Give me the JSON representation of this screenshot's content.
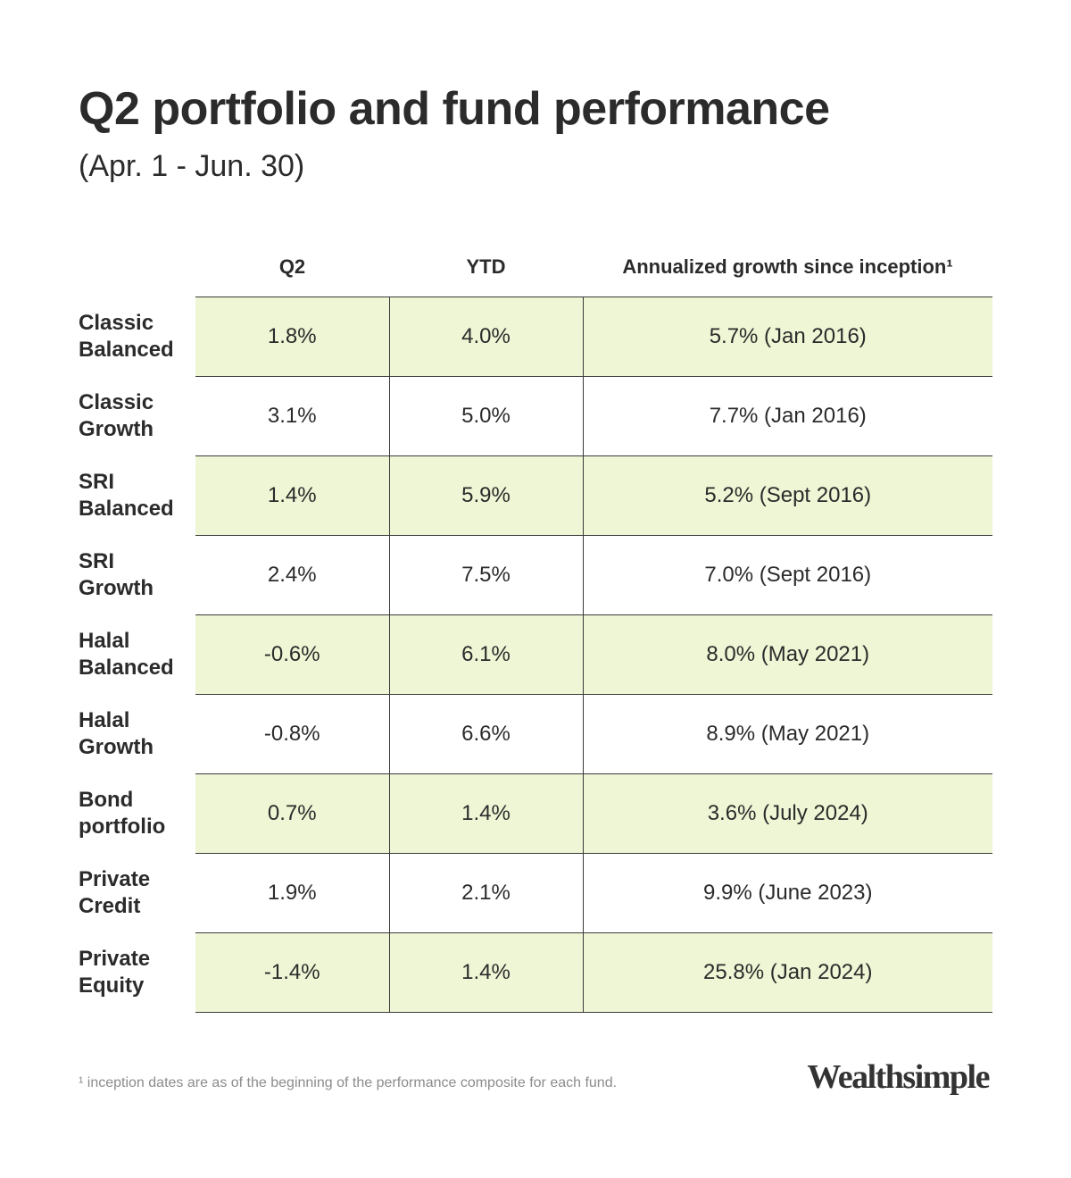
{
  "header": {
    "title": "Q2 portfolio and fund performance",
    "subtitle": "(Apr. 1 - Jun. 30)"
  },
  "table": {
    "columns": [
      "Q2",
      "YTD",
      "Annualized growth since inception¹"
    ],
    "rows": [
      {
        "label_line1": "Classic",
        "label_line2": "Balanced",
        "q2": "1.8%",
        "ytd": "4.0%",
        "annualized": "5.7% (Jan 2016)",
        "shaded": true
      },
      {
        "label_line1": "Classic",
        "label_line2": "Growth",
        "q2": "3.1%",
        "ytd": "5.0%",
        "annualized": "7.7% (Jan 2016)",
        "shaded": false
      },
      {
        "label_line1": "SRI",
        "label_line2": "Balanced",
        "q2": "1.4%",
        "ytd": "5.9%",
        "annualized": "5.2% (Sept 2016)",
        "shaded": true
      },
      {
        "label_line1": "SRI",
        "label_line2": "Growth",
        "q2": "2.4%",
        "ytd": "7.5%",
        "annualized": "7.0% (Sept 2016)",
        "shaded": false
      },
      {
        "label_line1": "Halal",
        "label_line2": "Balanced",
        "q2": "-0.6%",
        "ytd": "6.1%",
        "annualized": "8.0% (May 2021)",
        "shaded": true
      },
      {
        "label_line1": "Halal",
        "label_line2": "Growth",
        "q2": "-0.8%",
        "ytd": "6.6%",
        "annualized": "8.9% (May 2021)",
        "shaded": false
      },
      {
        "label_line1": "Bond",
        "label_line2": "portfolio",
        "q2": "0.7%",
        "ytd": "1.4%",
        "annualized": "3.6% (July 2024)",
        "shaded": true
      },
      {
        "label_line1": "Private",
        "label_line2": "Credit",
        "q2": "1.9%",
        "ytd": "2.1%",
        "annualized": "9.9% (June 2023)",
        "shaded": false
      },
      {
        "label_line1": "Private",
        "label_line2": "Equity",
        "q2": "-1.4%",
        "ytd": "1.4%",
        "annualized": "25.8% (Jan 2024)",
        "shaded": true
      }
    ]
  },
  "footer": {
    "footnote": "¹ inception dates are as of the beginning of the performance composite for each fund.",
    "logo": "Wealthsimple"
  },
  "colors": {
    "text": "#2b2b2b",
    "row_highlight": "#eff6d5",
    "rule": "#3a3a3a",
    "footnote": "#8c8c8c"
  }
}
